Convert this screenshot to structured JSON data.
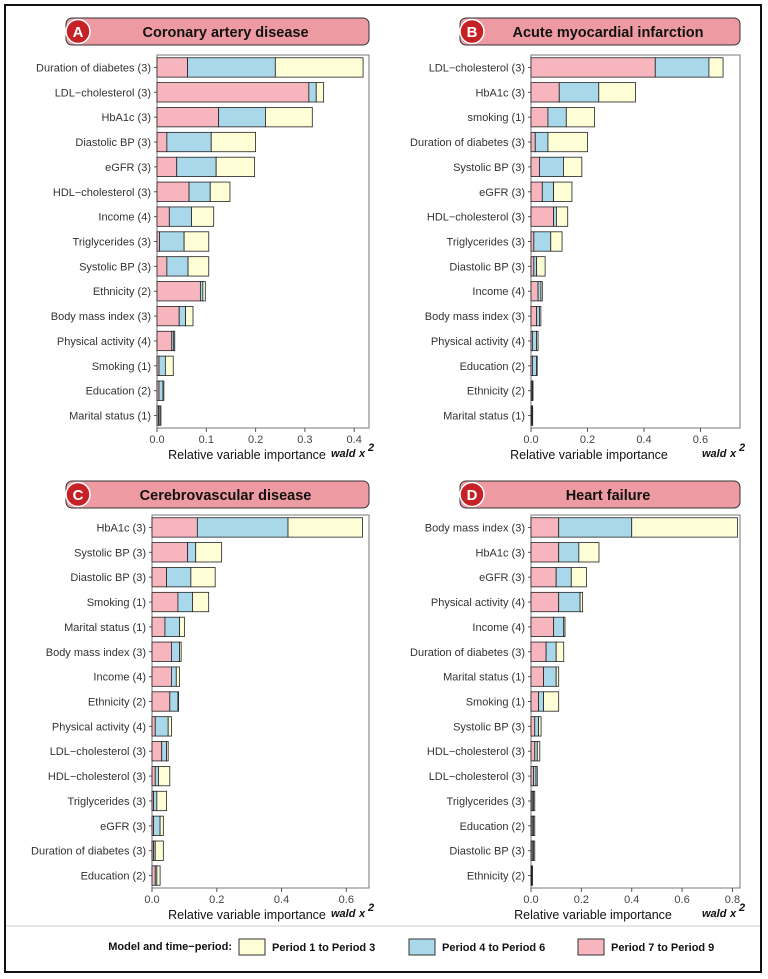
{
  "chart_data": [
    {
      "type": "bar",
      "orientation": "horizontal",
      "stacked": true,
      "panel_letter": "A",
      "title": "Coronary artery disease",
      "xlabel": "Relative variable importance",
      "xlabel_suffix": "wald",
      "xlabel_symbol": "x",
      "xlabel_superscript": "2",
      "xlim": [
        0,
        0.43
      ],
      "xticks": [
        0.0,
        0.1,
        0.2,
        0.3,
        0.4
      ],
      "xtick_labels": [
        "0.0",
        "0.1",
        "0.2",
        "0.3",
        "0.4"
      ],
      "categories": [
        "Duration of diabetes (3)",
        "LDL−cholesterol (3)",
        "HbA1c (3)",
        "Diastolic BP (3)",
        "eGFR (3)",
        "HDL−cholesterol (3)",
        "Income (4)",
        "Triglycerides (3)",
        "Systolic BP (3)",
        "Ethnicity (2)",
        "Body mass index (3)",
        "Physical activity (4)",
        "Smoking (1)",
        "Education (2)",
        "Marital status (1)"
      ],
      "series": [
        {
          "name": "Period 7 to Period 9",
          "values": [
            0.062,
            0.308,
            0.125,
            0.02,
            0.04,
            0.065,
            0.025,
            0.005,
            0.02,
            0.088,
            0.045,
            0.03,
            0.004,
            0.004,
            0.003
          ]
        },
        {
          "name": "Period 4 to Period 6",
          "values": [
            0.178,
            0.015,
            0.095,
            0.09,
            0.08,
            0.043,
            0.045,
            0.05,
            0.043,
            0.005,
            0.013,
            0.004,
            0.013,
            0.008,
            0.003
          ]
        },
        {
          "name": "Period 1 to Period 3",
          "values": [
            0.178,
            0.015,
            0.095,
            0.09,
            0.078,
            0.04,
            0.045,
            0.05,
            0.042,
            0.005,
            0.015,
            0.002,
            0.016,
            0.002,
            0.002
          ]
        }
      ]
    },
    {
      "type": "bar",
      "orientation": "horizontal",
      "stacked": true,
      "panel_letter": "B",
      "title": "Acute myocardial infarction",
      "xlabel": "Relative variable importance",
      "xlabel_suffix": "wald",
      "xlabel_symbol": "x",
      "xlabel_superscript": "2",
      "xlim": [
        0,
        0.74
      ],
      "xticks": [
        0.0,
        0.2,
        0.4,
        0.6
      ],
      "xtick_labels": [
        "0.0",
        "0.2",
        "0.4",
        "0.6"
      ],
      "categories": [
        "LDL−cholesterol (3)",
        "HbA1c (3)",
        "smoking (1)",
        "Duration of diabetes (3)",
        "Systolic BP (3)",
        "eGFR (3)",
        "HDL−cholesterol (3)",
        "Triglycerides (3)",
        "Diastolic BP (3)",
        "Income (4)",
        "Body mass index (3)",
        "Physical activity (4)",
        "Education (2)",
        "Ethnicity (2)",
        "Marital status (1)"
      ],
      "series": [
        {
          "name": "Period 7 to Period 9",
          "values": [
            0.44,
            0.1,
            0.06,
            0.015,
            0.03,
            0.04,
            0.08,
            0.01,
            0.01,
            0.025,
            0.02,
            0.005,
            0.005,
            0.004,
            0.003
          ]
        },
        {
          "name": "Period 4 to Period 6",
          "values": [
            0.19,
            0.14,
            0.065,
            0.045,
            0.085,
            0.04,
            0.01,
            0.06,
            0.01,
            0.01,
            0.01,
            0.015,
            0.015,
            0.002,
            0.002
          ]
        },
        {
          "name": "Period 1 to Period 3",
          "values": [
            0.05,
            0.13,
            0.1,
            0.14,
            0.065,
            0.065,
            0.04,
            0.04,
            0.03,
            0.005,
            0.005,
            0.005,
            0.002,
            0.001,
            0.001
          ]
        }
      ]
    },
    {
      "type": "bar",
      "orientation": "horizontal",
      "stacked": true,
      "panel_letter": "C",
      "title": "Cerebrovascular disease",
      "xlabel": "Relative variable importance",
      "xlabel_suffix": "wald",
      "xlabel_symbol": "x",
      "xlabel_superscript": "2",
      "xlim": [
        0,
        0.67
      ],
      "xticks": [
        0.0,
        0.2,
        0.4,
        0.6
      ],
      "xtick_labels": [
        "0.0",
        "0.2",
        "0.4",
        "0.6"
      ],
      "categories": [
        "HbA1c (3)",
        "Systolic BP (3)",
        "Diastolic BP (3)",
        "Smoking (1)",
        "Marital status (1)",
        "Body mass index (3)",
        "Income (4)",
        "Ethnicity (2)",
        "Physical activity (4)",
        "LDL−cholesterol (3)",
        "HDL−cholesterol (3)",
        "Triglycerides (3)",
        "eGFR (3)",
        "Duration of diabetes (3)",
        "Education (2)"
      ],
      "series": [
        {
          "name": "Period 7 to Period 9",
          "values": [
            0.14,
            0.11,
            0.045,
            0.08,
            0.04,
            0.06,
            0.06,
            0.055,
            0.01,
            0.03,
            0.01,
            0.005,
            0.005,
            0.005,
            0.01
          ]
        },
        {
          "name": "Period 4 to Period 6",
          "values": [
            0.28,
            0.025,
            0.075,
            0.045,
            0.045,
            0.025,
            0.015,
            0.025,
            0.04,
            0.015,
            0.01,
            0.01,
            0.02,
            0.005,
            0.005
          ]
        },
        {
          "name": "Period 1 to Period 3",
          "values": [
            0.23,
            0.08,
            0.075,
            0.05,
            0.015,
            0.005,
            0.01,
            0.002,
            0.01,
            0.005,
            0.035,
            0.03,
            0.01,
            0.025,
            0.01
          ]
        }
      ]
    },
    {
      "type": "bar",
      "orientation": "horizontal",
      "stacked": true,
      "panel_letter": "D",
      "title": "Heart failure",
      "xlabel": "Relative variable importance",
      "xlabel_suffix": "wald",
      "xlabel_symbol": "x",
      "xlabel_superscript": "2",
      "xlim": [
        0,
        0.83
      ],
      "xticks": [
        0.0,
        0.2,
        0.4,
        0.6,
        0.8
      ],
      "xtick_labels": [
        "0.0",
        "0.2",
        "0.4",
        "0.6",
        "0.8"
      ],
      "categories": [
        "Body mass index (3)",
        "HbA1c (3)",
        "eGFR (3)",
        "Physical activity (4)",
        "Income (4)",
        "Duration of diabetes (3)",
        "Marital status (1)",
        "Smoking (1)",
        "Systolic BP (3)",
        "HDL−cholesterol (3)",
        "LDL−cholesterol (3)",
        "Triglycerides (3)",
        "Education (2)",
        "Diastolic BP (3)",
        "Ethnicity (2)"
      ],
      "series": [
        {
          "name": "Period 7 to Period 9",
          "values": [
            0.11,
            0.11,
            0.1,
            0.11,
            0.09,
            0.06,
            0.05,
            0.03,
            0.015,
            0.015,
            0.01,
            0.005,
            0.005,
            0.005,
            0.002
          ]
        },
        {
          "name": "Period 4 to Period 6",
          "values": [
            0.29,
            0.08,
            0.06,
            0.085,
            0.04,
            0.04,
            0.05,
            0.02,
            0.015,
            0.01,
            0.01,
            0.005,
            0.005,
            0.005,
            0.002
          ]
        },
        {
          "name": "Period 1 to Period 3",
          "values": [
            0.42,
            0.08,
            0.06,
            0.01,
            0.005,
            0.03,
            0.01,
            0.06,
            0.01,
            0.01,
            0.005,
            0.005,
            0.005,
            0.005,
            0.002
          ]
        }
      ]
    }
  ],
  "legend": {
    "title": "Model and time−period:",
    "items": [
      {
        "label": "Period 1 to Period 3",
        "color": "#FDFDD6"
      },
      {
        "label": "Period 4 to Period 6",
        "color": "#A8D8EA"
      },
      {
        "label": "Period 7 to Period 9",
        "color": "#F7B6BE"
      }
    ]
  },
  "colors": {
    "Period 7 to Period 9": "#F7B6BE",
    "Period 4 to Period 6": "#A8D8EA",
    "Period 1 to Period 3": "#FDFDD6",
    "header_fill": "#EE9AA2",
    "letter_badge": "#C62127"
  }
}
